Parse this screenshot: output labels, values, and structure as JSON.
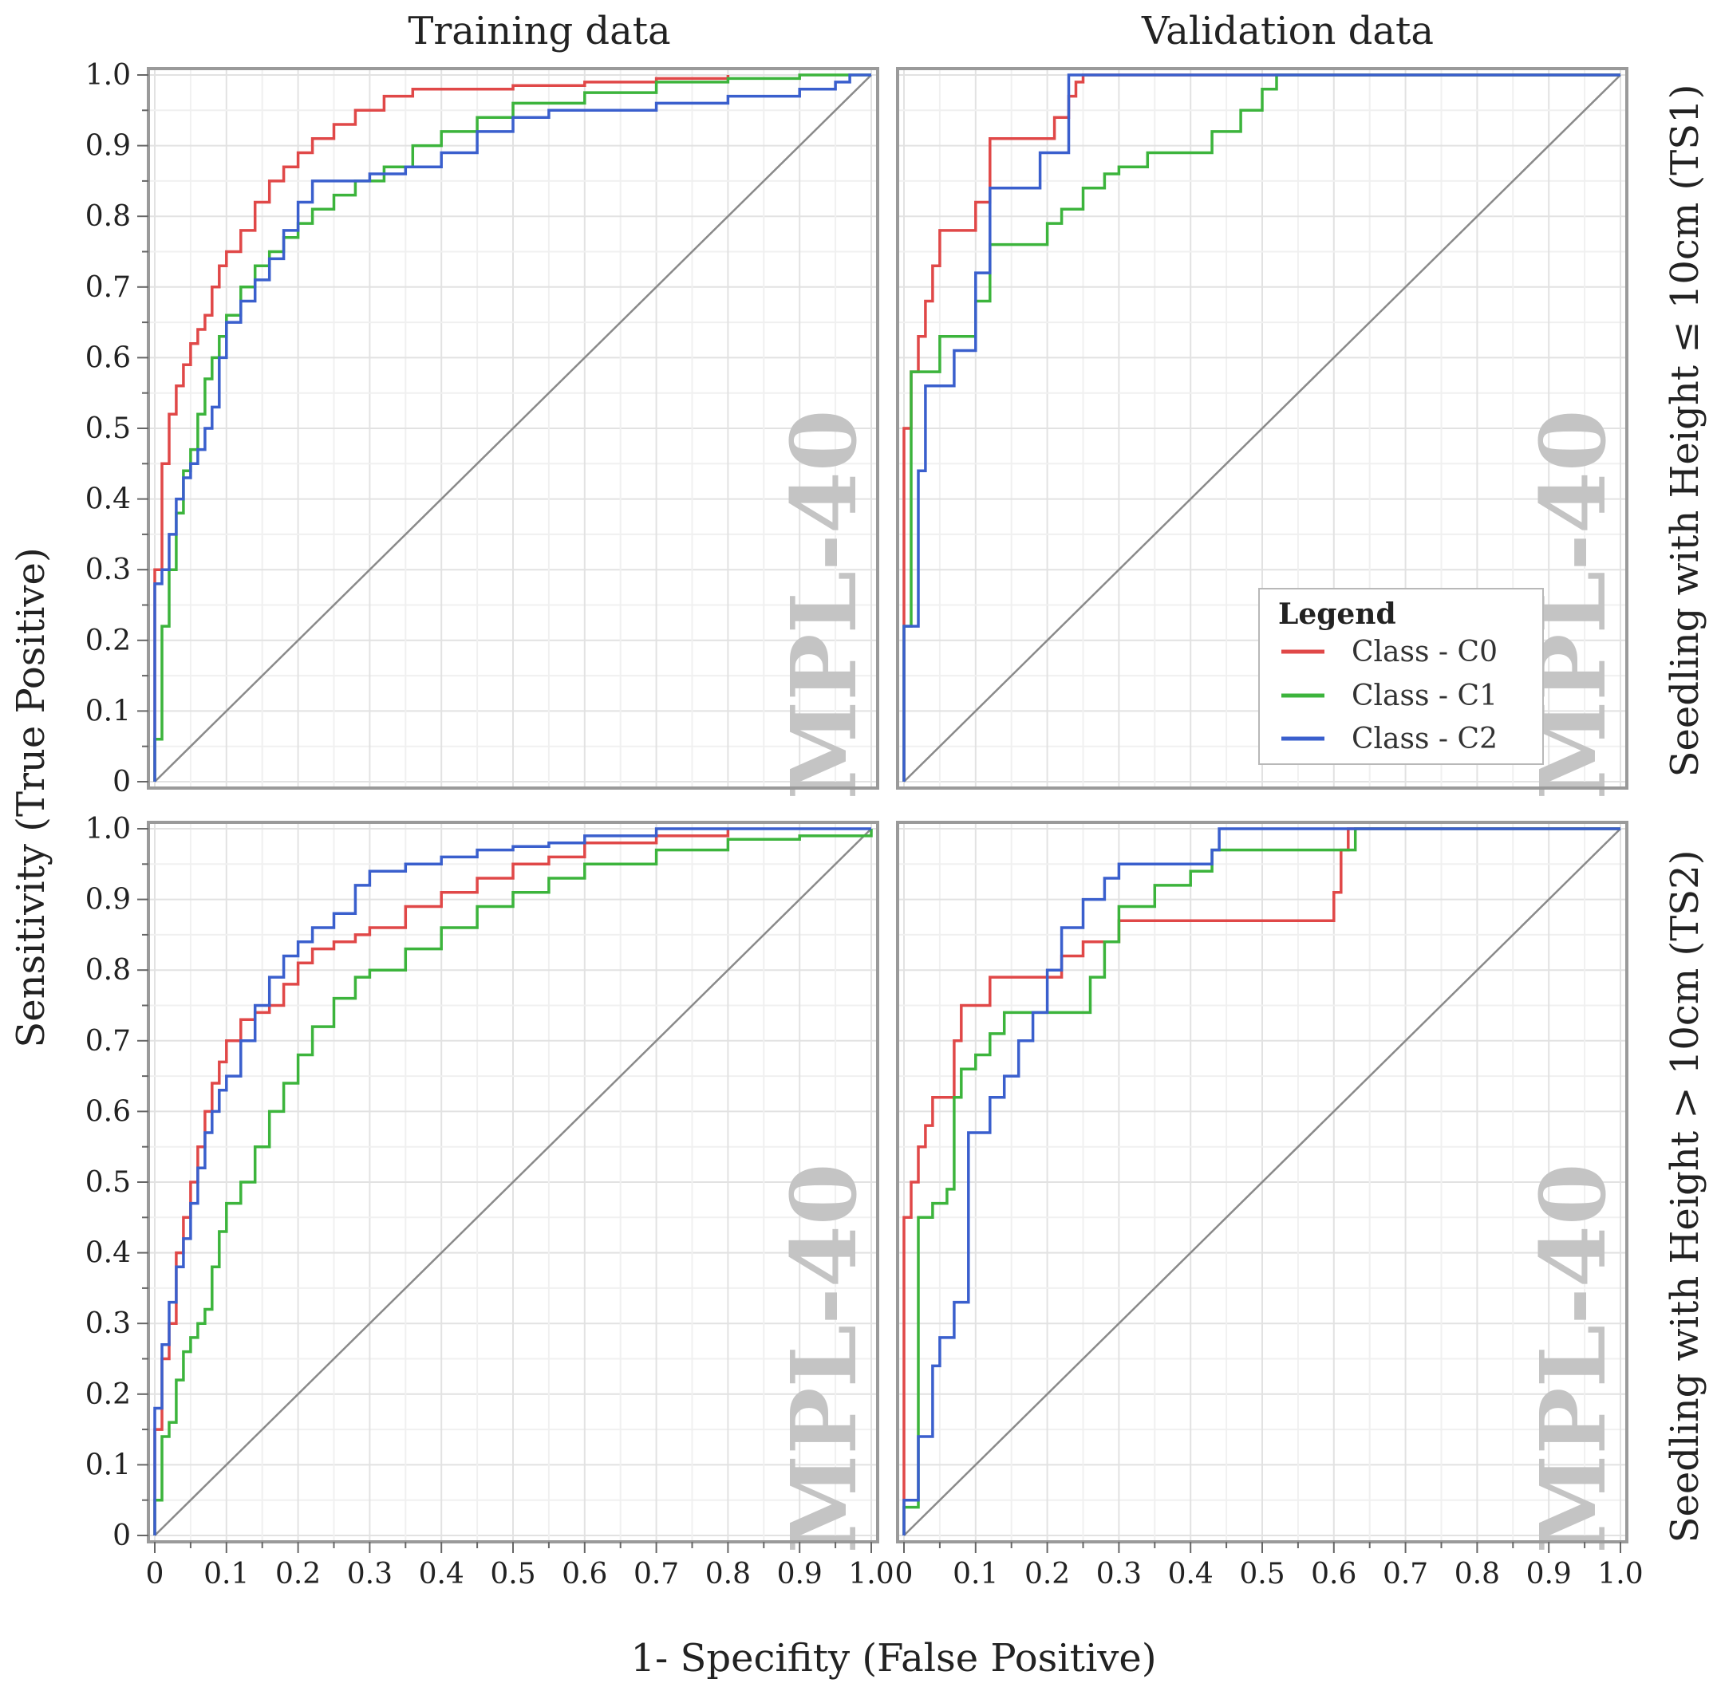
{
  "chart_data": {
    "type": "line",
    "title": "",
    "xlabel": "1- Specifity (False Positive)",
    "ylabel": "Sensitivity (True Positive)",
    "xlim": [
      0,
      1
    ],
    "ylim": [
      0,
      1
    ],
    "x_tick_labels": [
      "0",
      "0.1",
      "0.2",
      "0.3",
      "0.4",
      "0.5",
      "0.6",
      "0.7",
      "0.8",
      "0.9",
      "1.0"
    ],
    "y_tick_labels": [
      "0",
      "0.1",
      "0.2",
      "0.3",
      "0.4",
      "0.5",
      "0.6",
      "0.7",
      "0.8",
      "0.9",
      "1.0"
    ],
    "column_titles": [
      "Training data",
      "Validation data"
    ],
    "row_titles": [
      "Seedling with Height ≤ 10cm (TS1)",
      "Seedling with Height > 10cm (TS2)"
    ],
    "watermark": "MPL-40",
    "grid": true,
    "diagonal_reference": true,
    "legend": {
      "title": "Legend",
      "location": "lower-right of top-right panel",
      "entries": [
        "Class - C0",
        "Class - C1",
        "Class - C2"
      ]
    },
    "colors": {
      "C0": "#e04848",
      "C1": "#3cb43c",
      "C2": "#3a5fcd",
      "diagonal": "#8a8a8a",
      "grid": "#e6e6e6",
      "frame": "#9a9a9a"
    },
    "panels": [
      {
        "id": "ts1-training",
        "row": 0,
        "col": 0,
        "series": [
          {
            "name": "Class - C0",
            "x": [
              0,
              0,
              0.01,
              0.01,
              0.02,
              0.03,
              0.04,
              0.05,
              0.06,
              0.07,
              0.08,
              0.09,
              0.1,
              0.12,
              0.14,
              0.16,
              0.18,
              0.2,
              0.22,
              0.25,
              0.28,
              0.32,
              0.36,
              0.4,
              0.5,
              0.6,
              0.7,
              0.8
            ],
            "y": [
              0,
              0.3,
              0.33,
              0.45,
              0.52,
              0.56,
              0.59,
              0.62,
              0.64,
              0.66,
              0.7,
              0.73,
              0.75,
              0.78,
              0.82,
              0.85,
              0.87,
              0.89,
              0.91,
              0.93,
              0.95,
              0.97,
              0.98,
              0.98,
              0.985,
              0.99,
              0.995,
              1.0
            ]
          },
          {
            "name": "Class - C1",
            "x": [
              0,
              0,
              0.01,
              0.01,
              0.02,
              0.03,
              0.04,
              0.05,
              0.06,
              0.07,
              0.08,
              0.09,
              0.1,
              0.12,
              0.14,
              0.16,
              0.18,
              0.2,
              0.22,
              0.25,
              0.28,
              0.32,
              0.36,
              0.4,
              0.45,
              0.5,
              0.6,
              0.7,
              0.8,
              0.9,
              1.0
            ],
            "y": [
              0,
              0.06,
              0.15,
              0.22,
              0.3,
              0.38,
              0.44,
              0.47,
              0.52,
              0.57,
              0.6,
              0.63,
              0.66,
              0.7,
              0.73,
              0.75,
              0.77,
              0.79,
              0.81,
              0.83,
              0.85,
              0.87,
              0.9,
              0.92,
              0.94,
              0.96,
              0.975,
              0.99,
              0.995,
              1.0,
              1.0
            ]
          },
          {
            "name": "Class - C2",
            "x": [
              0,
              0,
              0.01,
              0.02,
              0.03,
              0.04,
              0.05,
              0.06,
              0.07,
              0.08,
              0.09,
              0.1,
              0.12,
              0.14,
              0.16,
              0.18,
              0.2,
              0.22,
              0.25,
              0.3,
              0.35,
              0.4,
              0.45,
              0.5,
              0.55,
              0.6,
              0.7,
              0.8,
              0.9,
              0.95,
              0.97,
              1.0
            ],
            "y": [
              0,
              0.28,
              0.3,
              0.35,
              0.4,
              0.43,
              0.45,
              0.47,
              0.5,
              0.53,
              0.6,
              0.65,
              0.68,
              0.71,
              0.74,
              0.78,
              0.82,
              0.85,
              0.85,
              0.86,
              0.87,
              0.89,
              0.92,
              0.94,
              0.95,
              0.95,
              0.96,
              0.97,
              0.98,
              0.99,
              1.0,
              1.0
            ]
          }
        ]
      },
      {
        "id": "ts1-validation",
        "row": 0,
        "col": 1,
        "series": [
          {
            "name": "Class - C0",
            "x": [
              0,
              0,
              0.01,
              0.02,
              0.03,
              0.04,
              0.05,
              0.08,
              0.1,
              0.12,
              0.15,
              0.18,
              0.21,
              0.23,
              0.24,
              0.25,
              0.3,
              0.5,
              1.0
            ],
            "y": [
              0,
              0.5,
              0.58,
              0.63,
              0.68,
              0.73,
              0.78,
              0.78,
              0.82,
              0.91,
              0.91,
              0.91,
              0.94,
              0.97,
              0.99,
              1.0,
              1.0,
              1.0,
              1.0
            ]
          },
          {
            "name": "Class - C1",
            "x": [
              0,
              0,
              0.01,
              0.03,
              0.05,
              0.06,
              0.08,
              0.1,
              0.12,
              0.14,
              0.17,
              0.2,
              0.22,
              0.25,
              0.28,
              0.3,
              0.34,
              0.38,
              0.43,
              0.47,
              0.5,
              0.52,
              0.6,
              1.0
            ],
            "y": [
              0,
              0.22,
              0.58,
              0.58,
              0.63,
              0.63,
              0.63,
              0.68,
              0.76,
              0.76,
              0.76,
              0.79,
              0.81,
              0.84,
              0.86,
              0.87,
              0.89,
              0.89,
              0.92,
              0.95,
              0.98,
              1.0,
              1.0,
              1.0
            ]
          },
          {
            "name": "Class - C2",
            "x": [
              0,
              0,
              0.01,
              0.02,
              0.03,
              0.05,
              0.07,
              0.09,
              0.1,
              0.12,
              0.14,
              0.17,
              0.19,
              0.22,
              0.23,
              0.3,
              1.0
            ],
            "y": [
              0,
              0.22,
              0.22,
              0.44,
              0.56,
              0.56,
              0.61,
              0.61,
              0.72,
              0.84,
              0.84,
              0.84,
              0.89,
              0.89,
              1.0,
              1.0,
              1.0
            ]
          }
        ]
      },
      {
        "id": "ts2-training",
        "row": 1,
        "col": 0,
        "series": [
          {
            "name": "Class - C0",
            "x": [
              0,
              0,
              0.01,
              0.02,
              0.03,
              0.04,
              0.05,
              0.06,
              0.07,
              0.08,
              0.09,
              0.1,
              0.12,
              0.14,
              0.16,
              0.18,
              0.2,
              0.22,
              0.25,
              0.28,
              0.3,
              0.35,
              0.4,
              0.45,
              0.5,
              0.55,
              0.6,
              0.7,
              0.8
            ],
            "y": [
              0,
              0.15,
              0.25,
              0.3,
              0.4,
              0.45,
              0.5,
              0.55,
              0.6,
              0.64,
              0.67,
              0.7,
              0.73,
              0.74,
              0.75,
              0.78,
              0.81,
              0.83,
              0.84,
              0.85,
              0.86,
              0.89,
              0.91,
              0.93,
              0.95,
              0.96,
              0.98,
              0.99,
              1.0
            ]
          },
          {
            "name": "Class - C1",
            "x": [
              0,
              0,
              0.01,
              0.02,
              0.03,
              0.04,
              0.05,
              0.06,
              0.07,
              0.08,
              0.09,
              0.1,
              0.12,
              0.14,
              0.16,
              0.18,
              0.2,
              0.22,
              0.25,
              0.28,
              0.3,
              0.35,
              0.4,
              0.45,
              0.5,
              0.55,
              0.6,
              0.7,
              0.8,
              0.9,
              1.0
            ],
            "y": [
              0,
              0.05,
              0.14,
              0.16,
              0.22,
              0.26,
              0.28,
              0.3,
              0.32,
              0.38,
              0.43,
              0.47,
              0.5,
              0.55,
              0.6,
              0.64,
              0.68,
              0.72,
              0.76,
              0.79,
              0.8,
              0.83,
              0.86,
              0.89,
              0.91,
              0.93,
              0.95,
              0.97,
              0.985,
              0.99,
              1.0
            ]
          },
          {
            "name": "Class - C2",
            "x": [
              0,
              0,
              0.01,
              0.02,
              0.03,
              0.04,
              0.05,
              0.06,
              0.07,
              0.08,
              0.09,
              0.1,
              0.12,
              0.14,
              0.16,
              0.18,
              0.2,
              0.22,
              0.25,
              0.28,
              0.3,
              0.35,
              0.4,
              0.45,
              0.5,
              0.55,
              0.6,
              0.7,
              0.8,
              0.9,
              1.0
            ],
            "y": [
              0,
              0.18,
              0.27,
              0.33,
              0.38,
              0.42,
              0.47,
              0.52,
              0.57,
              0.6,
              0.63,
              0.65,
              0.7,
              0.75,
              0.79,
              0.82,
              0.84,
              0.86,
              0.88,
              0.92,
              0.94,
              0.95,
              0.96,
              0.97,
              0.975,
              0.98,
              0.99,
              1.0,
              1.0,
              1.0,
              1.0
            ]
          }
        ]
      },
      {
        "id": "ts2-validation",
        "row": 1,
        "col": 1,
        "series": [
          {
            "name": "Class - C0",
            "x": [
              0,
              0,
              0.01,
              0.02,
              0.03,
              0.04,
              0.05,
              0.06,
              0.07,
              0.08,
              0.1,
              0.12,
              0.15,
              0.18,
              0.2,
              0.22,
              0.25,
              0.3,
              0.35,
              0.4,
              0.5,
              0.58,
              0.6,
              0.61,
              0.62,
              1.0
            ],
            "y": [
              0,
              0.45,
              0.5,
              0.55,
              0.58,
              0.62,
              0.62,
              0.62,
              0.7,
              0.75,
              0.75,
              0.79,
              0.79,
              0.79,
              0.79,
              0.82,
              0.84,
              0.87,
              0.87,
              0.87,
              0.87,
              0.87,
              0.91,
              0.97,
              1.0,
              1.0
            ]
          },
          {
            "name": "Class - C1",
            "x": [
              0,
              0,
              0.02,
              0.04,
              0.06,
              0.07,
              0.08,
              0.1,
              0.12,
              0.14,
              0.17,
              0.2,
              0.24,
              0.26,
              0.28,
              0.3,
              0.35,
              0.4,
              0.43,
              0.5,
              0.62,
              0.63,
              1.0
            ],
            "y": [
              0,
              0.04,
              0.45,
              0.47,
              0.49,
              0.62,
              0.66,
              0.68,
              0.71,
              0.74,
              0.74,
              0.74,
              0.74,
              0.79,
              0.84,
              0.89,
              0.92,
              0.94,
              0.97,
              0.97,
              0.97,
              1.0,
              1.0
            ]
          },
          {
            "name": "Class - C2",
            "x": [
              0,
              0,
              0.01,
              0.02,
              0.03,
              0.04,
              0.05,
              0.07,
              0.09,
              0.1,
              0.12,
              0.14,
              0.16,
              0.18,
              0.2,
              0.22,
              0.25,
              0.28,
              0.3,
              0.35,
              0.4,
              0.43,
              0.44,
              1.0
            ],
            "y": [
              0,
              0.05,
              0.05,
              0.14,
              0.14,
              0.24,
              0.28,
              0.33,
              0.57,
              0.57,
              0.62,
              0.65,
              0.7,
              0.74,
              0.8,
              0.86,
              0.9,
              0.93,
              0.95,
              0.95,
              0.95,
              0.97,
              1.0,
              1.0
            ]
          }
        ]
      }
    ]
  }
}
